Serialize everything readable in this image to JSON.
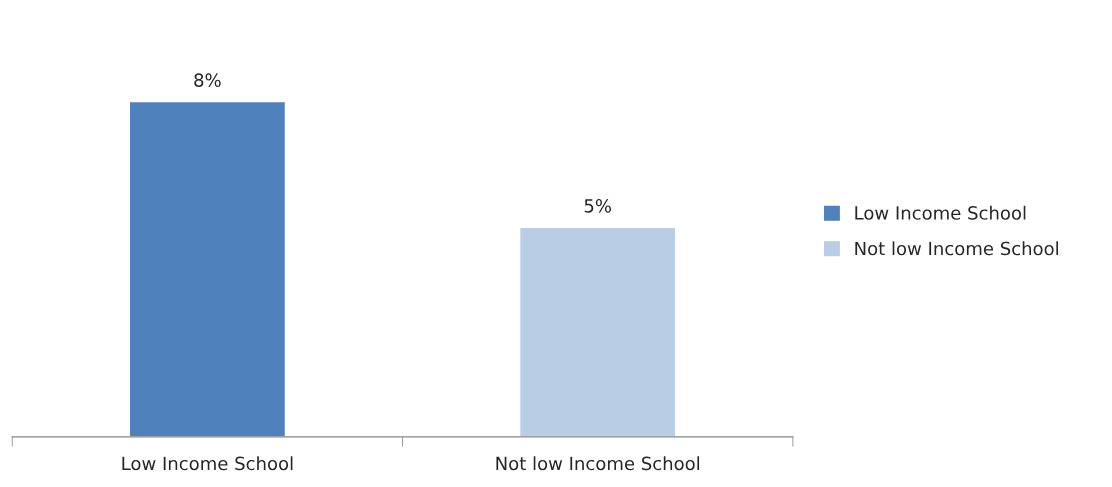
{
  "chart_data": {
    "type": "bar",
    "categories": [
      "Low Income School",
      "Not low Income School"
    ],
    "series": [
      {
        "name": "Low Income School",
        "color": "#4f81bd",
        "values": [
          8,
          null
        ],
        "value_labels": [
          "8%",
          null
        ]
      },
      {
        "name": "Not low Income School",
        "color": "#b9cde5",
        "values": [
          null,
          5
        ],
        "value_labels": [
          null,
          "5%"
        ]
      }
    ],
    "grid": false,
    "legend": "right",
    "tick_labels": "x"
  }
}
